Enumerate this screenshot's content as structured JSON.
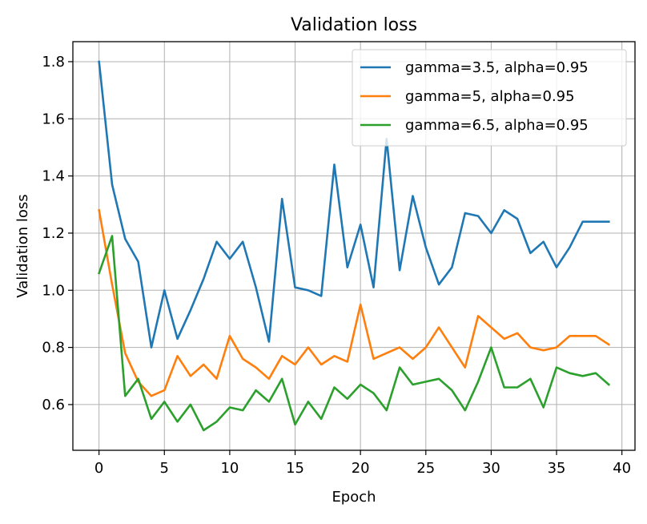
{
  "chart_data": {
    "type": "line",
    "title": "Validation loss",
    "xlabel": "Epoch",
    "ylabel": "Validation loss",
    "xlim": [
      -2,
      41
    ],
    "ylim": [
      0.44,
      1.87
    ],
    "xticks": [
      0,
      5,
      10,
      15,
      20,
      25,
      30,
      35,
      40
    ],
    "yticks": [
      0.6,
      0.8,
      1.0,
      1.2,
      1.4,
      1.6,
      1.8
    ],
    "xtick_labels": [
      "0",
      "5",
      "10",
      "15",
      "20",
      "25",
      "30",
      "35",
      "40"
    ],
    "ytick_labels": [
      "0.6",
      "0.8",
      "1.0",
      "1.2",
      "1.4",
      "1.6",
      "1.8"
    ],
    "grid": true,
    "legend_position": "top-right",
    "x": [
      0,
      1,
      2,
      3,
      4,
      5,
      6,
      7,
      8,
      9,
      10,
      11,
      12,
      13,
      14,
      15,
      16,
      17,
      18,
      19,
      20,
      21,
      22,
      23,
      24,
      25,
      26,
      27,
      28,
      29,
      30,
      31,
      32,
      33,
      34,
      35,
      36,
      37,
      38,
      39
    ],
    "series": [
      {
        "name": "gamma=3.5, alpha=0.95",
        "color": "#1f77b4",
        "values": [
          1.8,
          1.37,
          1.18,
          1.1,
          0.8,
          1.0,
          0.83,
          0.93,
          1.04,
          1.17,
          1.11,
          1.17,
          1.01,
          0.82,
          1.32,
          1.01,
          1.0,
          0.98,
          1.44,
          1.08,
          1.23,
          1.01,
          1.53,
          1.07,
          1.33,
          1.15,
          1.02,
          1.08,
          1.27,
          1.26,
          1.2,
          1.28,
          1.25,
          1.13,
          1.17,
          1.08,
          1.15,
          1.24,
          1.24,
          1.24
        ]
      },
      {
        "name": "gamma=5, alpha=0.95",
        "color": "#ff7f0e",
        "values": [
          1.28,
          1.02,
          0.78,
          0.68,
          0.63,
          0.65,
          0.77,
          0.7,
          0.74,
          0.69,
          0.84,
          0.76,
          0.73,
          0.69,
          0.77,
          0.74,
          0.8,
          0.74,
          0.77,
          0.75,
          0.95,
          0.76,
          0.78,
          0.8,
          0.76,
          0.8,
          0.87,
          0.8,
          0.73,
          0.91,
          0.87,
          0.83,
          0.85,
          0.8,
          0.79,
          0.8,
          0.84,
          0.84,
          0.84,
          0.81
        ]
      },
      {
        "name": "gamma=6.5, alpha=0.95",
        "color": "#2ca02c",
        "values": [
          1.06,
          1.19,
          0.63,
          0.69,
          0.55,
          0.61,
          0.54,
          0.6,
          0.51,
          0.54,
          0.59,
          0.58,
          0.65,
          0.61,
          0.69,
          0.53,
          0.61,
          0.55,
          0.66,
          0.62,
          0.67,
          0.64,
          0.58,
          0.73,
          0.67,
          0.68,
          0.69,
          0.65,
          0.58,
          0.68,
          0.8,
          0.66,
          0.66,
          0.69,
          0.59,
          0.73,
          0.71,
          0.7,
          0.71,
          0.67
        ]
      }
    ]
  }
}
